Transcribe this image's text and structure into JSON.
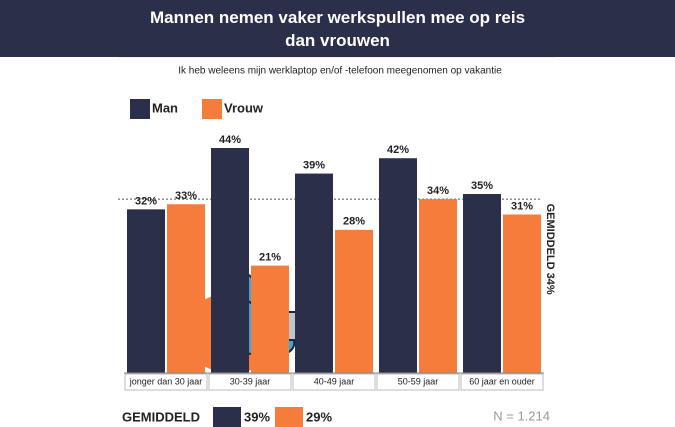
{
  "chart_data": {
    "type": "bar",
    "title": "Mannen nemen vaker werkspullen mee op reis dan vrouwen",
    "subtitle": "Ik heb weleens mijn werklaptop en/of -telefoon meegenomen op vakantie",
    "categories": [
      "jonger dan 30 jaar",
      "30-39 jaar",
      "40-49 jaar",
      "50-59 jaar",
      "60 jaar en ouder"
    ],
    "series": [
      {
        "name": "Man",
        "color": "#2b2f4a",
        "values": [
          32,
          44,
          39,
          42,
          35
        ],
        "value_labels": [
          "32%",
          "44%",
          "39%",
          "42%",
          "35%"
        ]
      },
      {
        "name": "Vrouw",
        "color": "#f57c3a",
        "values": [
          33,
          21,
          28,
          34,
          31
        ],
        "value_labels": [
          "33%",
          "21%",
          "28%",
          "34%",
          "31%"
        ]
      }
    ],
    "average_line": {
      "value": 34,
      "label": "GEMIDDELD 34%"
    },
    "totals": {
      "label": "GEMIDDELD",
      "values": [
        39,
        29
      ],
      "value_labels": [
        "39%",
        "29%"
      ]
    },
    "note": "N = 1.214"
  }
}
